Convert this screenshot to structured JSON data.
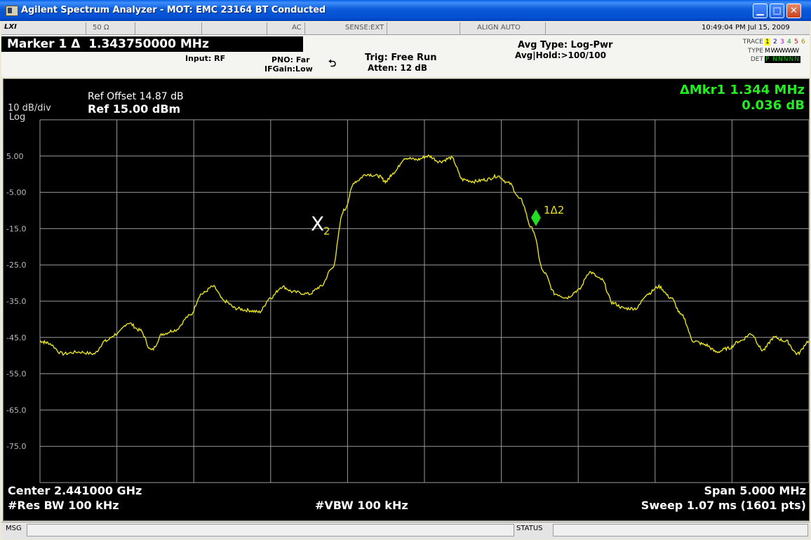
{
  "window": {
    "title": "Agilent Spectrum Analyzer - MOT: EMC 23164 BT Conducted",
    "icon": "app-icon"
  },
  "status_row": {
    "logo": "LXI",
    "impedance": "50 Ω",
    "coupling": "AC",
    "sense": "SENSE:EXT",
    "align": "ALIGN AUTO",
    "datetime": "10:49:04 PM Jul 15, 2009"
  },
  "marker": {
    "label": "Marker 1 Δ  1.343750000 MHz"
  },
  "settings": {
    "input": "Input: RF",
    "pno": "PNO: Far",
    "ifgain": "IFGain:Low",
    "trig": "Trig: Free Run",
    "atten": "Atten: 12 dB",
    "avg_type": "Avg Type: Log-Pwr",
    "avg_hold": "Avg|Hold:>100/100"
  },
  "trace_table": {
    "trace_label": "TRACE",
    "type_label": "TYPE",
    "det_label": "DET",
    "trace_numbers": [
      "1",
      "2",
      "3",
      "4",
      "5",
      "6"
    ],
    "type_values": "M WWWWW",
    "det_values": "P NNNNN"
  },
  "display": {
    "ref_offset": "Ref Offset 14.87 dB",
    "ref_level": "Ref 15.00 dBm",
    "scale": "10 dB/div",
    "scale_type": "Log",
    "delta_marker_freq": "ΔMkr1 1.344 MHz",
    "delta_marker_amp": "0.036 dB",
    "marker1_label": "1Δ2",
    "marker2_label": "X",
    "marker2_sub": "2",
    "center": "Center 2.441000 GHz",
    "res_bw": "#Res BW 100 kHz",
    "vbw": "#VBW 100 kHz",
    "span": "Span 5.000 MHz",
    "sweep": "Sweep  1.07 ms (1601 pts)"
  },
  "bottom_bar": {
    "msg": "MSG",
    "status": "STATUS"
  },
  "chart_data": {
    "type": "line",
    "title": "",
    "xlabel": "",
    "ylabel": "",
    "y_tick_labels": [
      "5.00",
      "-5.00",
      "-15.0",
      "-25.0",
      "-35.0",
      "-45.0",
      "-55.0",
      "-65.0",
      "-75.0"
    ],
    "ylim": [
      -85,
      15
    ],
    "xlim": [
      0,
      10
    ],
    "grid": true,
    "trace_color": "#e6e020",
    "series": [
      {
        "values_x_div": [
          0,
          0.1,
          0.3,
          0.5,
          0.7,
          0.85,
          1.0,
          1.15,
          1.3,
          1.45,
          1.6,
          1.75,
          1.95,
          2.1,
          2.25,
          2.4,
          2.55,
          2.7,
          2.85,
          3.0,
          3.15,
          3.3,
          3.5,
          3.65,
          3.8,
          3.95,
          4.1,
          4.25,
          4.4,
          4.5,
          4.6,
          4.75,
          4.9,
          5.05,
          5.2,
          5.35,
          5.5,
          5.65,
          5.8,
          5.95,
          6.1,
          6.25,
          6.4,
          6.55,
          6.7,
          6.85,
          7.0,
          7.15,
          7.3,
          7.45,
          7.6,
          7.75,
          7.9,
          8.05,
          8.2,
          8.35,
          8.5,
          8.65,
          8.8,
          8.95,
          9.1,
          9.25,
          9.4,
          9.55,
          9.7,
          9.85,
          10.0
        ],
        "values_dbm": [
          -46,
          -46.5,
          -49.5,
          -49,
          -49.5,
          -46,
          -44,
          -41,
          -43,
          -48.5,
          -44,
          -43,
          -39,
          -33,
          -31,
          -35,
          -37,
          -37.5,
          -38,
          -34,
          -31,
          -32.5,
          -33,
          -31,
          -26,
          -10,
          -2,
          0,
          -0.5,
          -2,
          0.5,
          4.5,
          4,
          5,
          3.5,
          4.5,
          -1.5,
          -2,
          -1.5,
          -0.5,
          -2.5,
          -7,
          -15,
          -27,
          -33,
          -34,
          -32,
          -27,
          -29,
          -35.5,
          -37,
          -37,
          -33,
          -31,
          -34,
          -39,
          -46,
          -47,
          -49,
          -48,
          -46,
          -44,
          -48.5,
          -45,
          -46,
          -49.5,
          -46
        ]
      }
    ],
    "markers": [
      {
        "name": "1Δ2",
        "x_div": 6.45,
        "y_dbm": -12,
        "color": "#22dd22"
      },
      {
        "name": "X2",
        "x_div": 3.65,
        "y_dbm": -14,
        "color": "#ffffff"
      }
    ]
  }
}
